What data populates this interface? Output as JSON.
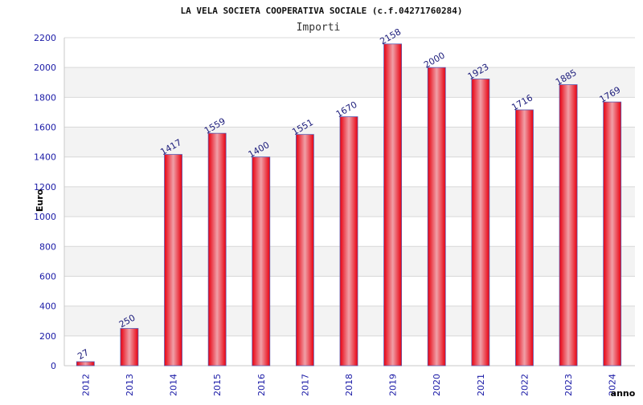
{
  "chart_data": {
    "type": "bar",
    "title": "LA VELA SOCIETA COOPERATIVA SOCIALE (c.f.04271760284)",
    "subtitle": "Importi",
    "xlabel": "anno",
    "ylabel": "Euro",
    "categories": [
      "2012",
      "2013",
      "2014",
      "2015",
      "2016",
      "2017",
      "2018",
      "2019",
      "2020",
      "2021",
      "2022",
      "2023",
      "2024"
    ],
    "values": [
      27,
      250,
      1417,
      1559,
      1400,
      1551,
      1670,
      2158,
      2000,
      1923,
      1716,
      1885,
      1769
    ],
    "ylim": [
      0,
      2200
    ],
    "yticks": [
      0,
      200,
      400,
      600,
      800,
      1000,
      1200,
      1400,
      1600,
      1800,
      2000,
      2200
    ],
    "grid": true,
    "legend": "none",
    "colors": {
      "bar_edge": "#e8000f",
      "bar_center": "#f0a0a8",
      "bar_outline": "#5a5ab0",
      "band_alt": "#f3f3f3",
      "grid": "#d8d8d8",
      "tick_text": "#1a1aa6"
    }
  }
}
